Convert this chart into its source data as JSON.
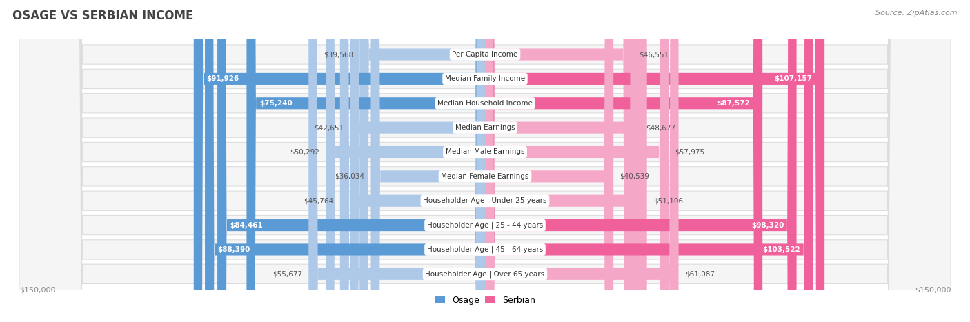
{
  "title": "OSAGE VS SERBIAN INCOME",
  "source": "Source: ZipAtlas.com",
  "categories": [
    "Per Capita Income",
    "Median Family Income",
    "Median Household Income",
    "Median Earnings",
    "Median Male Earnings",
    "Median Female Earnings",
    "Householder Age | Under 25 years",
    "Householder Age | 25 - 44 years",
    "Householder Age | 45 - 64 years",
    "Householder Age | Over 65 years"
  ],
  "osage_values": [
    39568,
    91926,
    75240,
    42651,
    50292,
    36034,
    45764,
    84461,
    88390,
    55677
  ],
  "serbian_values": [
    46551,
    107157,
    87572,
    48677,
    57975,
    40539,
    51106,
    98320,
    103522,
    61087
  ],
  "osage_labels": [
    "$39,568",
    "$91,926",
    "$75,240",
    "$42,651",
    "$50,292",
    "$36,034",
    "$45,764",
    "$84,461",
    "$88,390",
    "$55,677"
  ],
  "serbian_labels": [
    "$46,551",
    "$107,157",
    "$87,572",
    "$48,677",
    "$57,975",
    "$40,539",
    "$51,106",
    "$98,320",
    "$103,522",
    "$61,087"
  ],
  "max_value": 150000,
  "osage_color_strong": "#5b9bd5",
  "osage_color_light": "#aec8e8",
  "serbian_color_strong": "#f0609a",
  "serbian_color_light": "#f5a7c7",
  "bg_color": "#ffffff",
  "row_bg": "#f5f5f5",
  "row_border": "#dddddd",
  "title_color": "#444444",
  "source_color": "#888888",
  "axis_label_color": "#888888",
  "legend_osage": "Osage",
  "legend_serbian": "Serbian",
  "strong_threshold": 70000,
  "label_dark": "#555555",
  "label_white": "#ffffff"
}
